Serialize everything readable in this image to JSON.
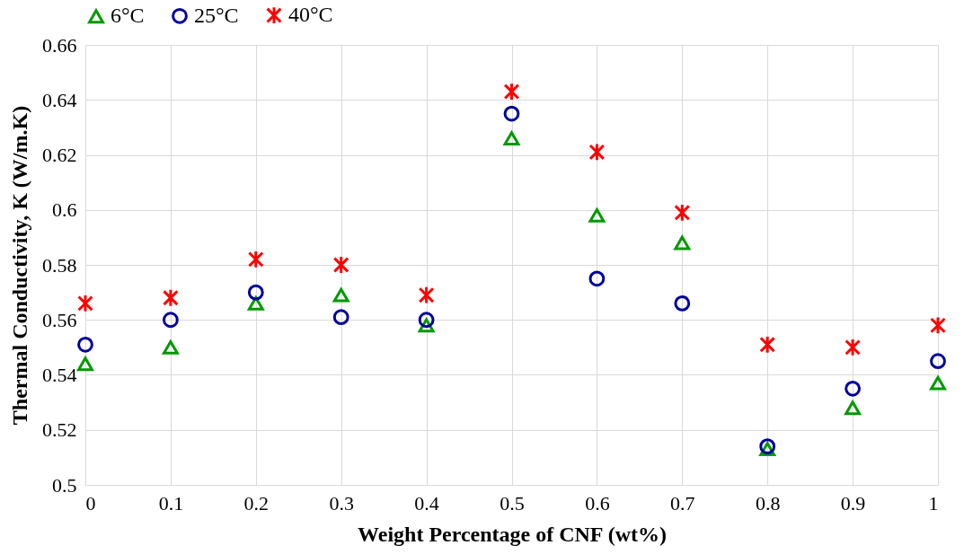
{
  "chart_data": {
    "type": "scatter",
    "xlabel": "Weight Percentage of CNF (wt%)",
    "ylabel": "Thermal Conductivity, K (W/m.K)",
    "x": [
      0,
      0.1,
      0.2,
      0.3,
      0.4,
      0.5,
      0.6,
      0.7,
      0.8,
      0.9,
      1
    ],
    "series": [
      {
        "name": "6°C",
        "color": "#009900",
        "marker": "triangle",
        "values": [
          0.544,
          0.55,
          0.566,
          0.569,
          0.558,
          0.626,
          0.598,
          0.588,
          0.513,
          0.528,
          0.537
        ]
      },
      {
        "name": "25°C",
        "color": "#000099",
        "marker": "circle",
        "values": [
          0.551,
          0.56,
          0.57,
          0.561,
          0.56,
          0.635,
          0.575,
          0.566,
          0.514,
          0.535,
          0.545
        ]
      },
      {
        "name": "40°C",
        "color": "#ff0000",
        "marker": "cross",
        "values": [
          0.566,
          0.568,
          0.582,
          0.58,
          0.569,
          0.643,
          0.621,
          0.599,
          0.551,
          0.55,
          0.558
        ]
      }
    ],
    "xlim": [
      0,
      1
    ],
    "xticks": [
      0,
      0.1,
      0.2,
      0.3,
      0.4,
      0.5,
      0.6,
      0.7,
      0.8,
      0.9,
      1
    ],
    "ylim": [
      0.5,
      0.66
    ],
    "yticks": [
      0.5,
      0.52,
      0.54,
      0.56,
      0.58,
      0.6,
      0.62,
      0.64,
      0.66
    ],
    "grid": true,
    "legend": "top"
  }
}
